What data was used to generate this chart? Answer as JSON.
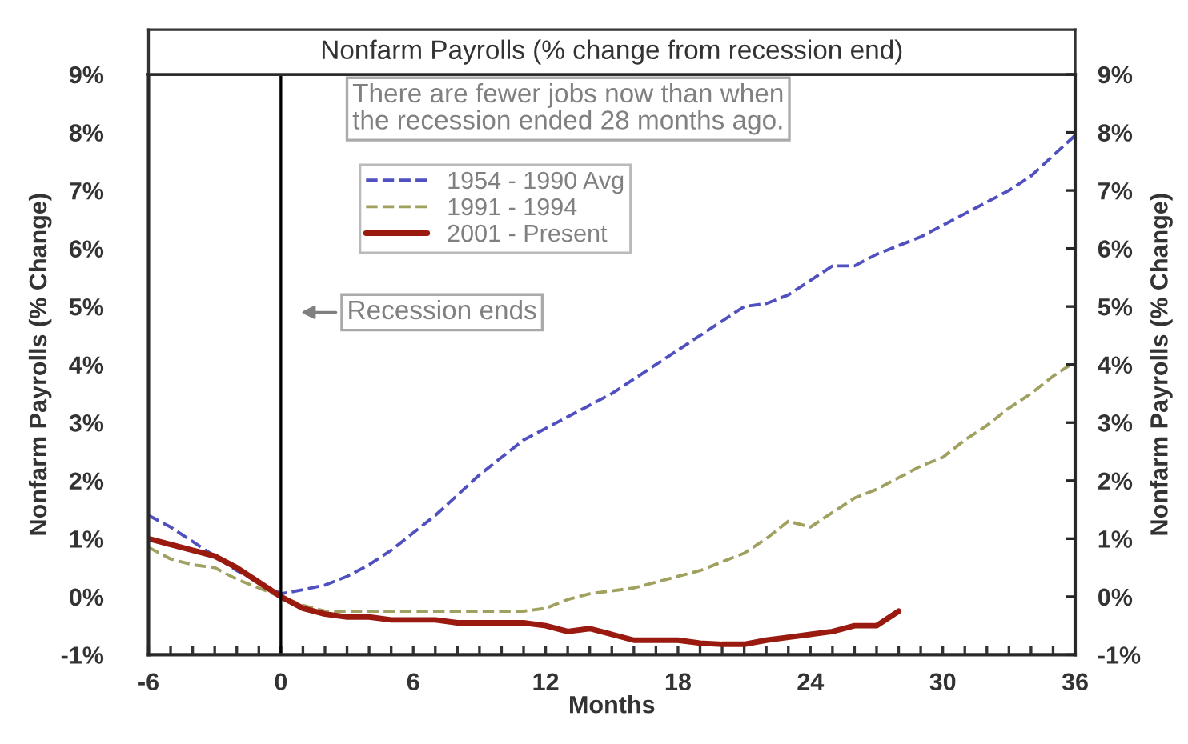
{
  "chart_data": {
    "type": "line",
    "title": "Nonfarm Payrolls (% change from recession end)",
    "xlabel": "Months",
    "ylabel": "Nonfarm Payrolls (% Change)",
    "y2label": "Nonfarm Payrolls (% Change)",
    "x": [
      -6,
      -5,
      -4,
      -3,
      -2,
      -1,
      0,
      1,
      2,
      3,
      4,
      5,
      6,
      7,
      8,
      9,
      10,
      11,
      12,
      13,
      14,
      15,
      16,
      17,
      18,
      19,
      20,
      21,
      22,
      23,
      24,
      25,
      26,
      27,
      28,
      29,
      30,
      31,
      32,
      33,
      34,
      35,
      36
    ],
    "series": [
      {
        "name": "1954 - 1990 Avg",
        "color": "#5050c0",
        "line_style": "dashed",
        "values": [
          1.4,
          1.2,
          0.95,
          0.7,
          0.45,
          0.25,
          0.05,
          0.12,
          0.2,
          0.35,
          0.55,
          0.8,
          1.1,
          1.4,
          1.75,
          2.1,
          2.4,
          2.7,
          2.9,
          3.1,
          3.3,
          3.5,
          3.75,
          4.0,
          4.25,
          4.5,
          4.75,
          5.0,
          5.05,
          5.2,
          5.45,
          5.7,
          5.7,
          5.9,
          6.05,
          6.2,
          6.4,
          6.6,
          6.8,
          7.0,
          7.25,
          7.6,
          7.95
        ]
      },
      {
        "name": "1991 - 1994",
        "color": "#a0a060",
        "line_style": "dashed",
        "values": [
          0.85,
          0.65,
          0.55,
          0.5,
          0.3,
          0.15,
          0.0,
          -0.15,
          -0.25,
          -0.25,
          -0.25,
          -0.25,
          -0.25,
          -0.25,
          -0.25,
          -0.25,
          -0.25,
          -0.25,
          -0.2,
          -0.05,
          0.05,
          0.1,
          0.15,
          0.25,
          0.35,
          0.45,
          0.6,
          0.75,
          1.0,
          1.3,
          1.2,
          1.45,
          1.7,
          1.85,
          2.05,
          2.25,
          2.4,
          2.7,
          2.95,
          3.25,
          3.5,
          3.8,
          4.05
        ]
      },
      {
        "name": "2001 - Present",
        "color": "#9a1a10",
        "line_style": "solid",
        "values": [
          1.0,
          0.9,
          0.8,
          0.7,
          0.5,
          0.25,
          0.0,
          -0.2,
          -0.3,
          -0.35,
          -0.35,
          -0.4,
          -0.4,
          -0.4,
          -0.45,
          -0.45,
          -0.45,
          -0.45,
          -0.5,
          -0.6,
          -0.55,
          -0.65,
          -0.75,
          -0.75,
          -0.75,
          -0.8,
          -0.82,
          -0.82,
          -0.75,
          -0.7,
          -0.65,
          -0.6,
          -0.5,
          -0.5,
          -0.25,
          null,
          null,
          null,
          null,
          null,
          null,
          null,
          null
        ]
      }
    ],
    "xlim": [
      -6,
      36
    ],
    "xticks": [
      {
        "value": -6,
        "label": "-6"
      },
      {
        "value": -5,
        "label": null
      },
      {
        "value": -4,
        "label": null
      },
      {
        "value": -3,
        "label": null
      },
      {
        "value": -2,
        "label": null
      },
      {
        "value": -1,
        "label": null
      },
      0,
      {
        "value": 1,
        "label": null
      },
      {
        "value": 2,
        "label": null
      },
      {
        "value": 3,
        "label": null
      },
      {
        "value": 4,
        "label": null
      },
      {
        "value": 5,
        "label": null
      },
      6,
      {
        "value": 7,
        "label": null
      },
      {
        "value": 8,
        "label": null
      },
      {
        "value": 9,
        "label": null
      },
      {
        "value": 10,
        "label": null
      },
      {
        "value": 11,
        "label": null
      },
      12,
      {
        "value": 13,
        "label": null
      },
      {
        "value": 14,
        "label": null
      },
      {
        "value": 15,
        "label": null
      },
      {
        "value": 16,
        "label": null
      },
      {
        "value": 17,
        "label": null
      },
      18,
      {
        "value": 19,
        "label": null
      },
      {
        "value": 20,
        "label": null
      },
      {
        "value": 21,
        "label": null
      },
      {
        "value": 22,
        "label": null
      },
      {
        "value": 23,
        "label": null
      },
      24,
      {
        "value": 25,
        "label": null
      },
      {
        "value": 26,
        "label": null
      },
      {
        "value": 27,
        "label": null
      },
      {
        "value": 28,
        "label": null
      },
      {
        "value": 29,
        "label": null
      },
      30,
      {
        "value": 31,
        "label": null
      },
      {
        "value": 32,
        "label": null
      },
      {
        "value": 33,
        "label": null
      },
      {
        "value": 34,
        "label": null
      },
      {
        "value": 35,
        "label": null
      },
      36
    ],
    "ylim": [
      -1,
      9
    ],
    "yticks": [
      {
        "value": -1,
        "label": "-1%"
      },
      {
        "value": 0,
        "label": "0%"
      },
      {
        "value": 1,
        "label": "1%"
      },
      {
        "value": 2,
        "label": "2%"
      },
      {
        "value": 3,
        "label": "3%"
      },
      {
        "value": 4,
        "label": "4%"
      },
      {
        "value": 5,
        "label": "5%"
      },
      {
        "value": 6,
        "label": "6%"
      },
      {
        "value": 7,
        "label": "7%"
      },
      {
        "value": 8,
        "label": "8%"
      },
      {
        "value": 9,
        "label": "9%"
      }
    ],
    "y2lim": [
      -1,
      9
    ],
    "y2ticks": [
      {
        "value": -1,
        "label": "-1%"
      },
      {
        "value": 0,
        "label": "0%"
      },
      {
        "value": 1,
        "label": "1%"
      },
      {
        "value": 2,
        "label": "2%"
      },
      {
        "value": 3,
        "label": "3%"
      },
      {
        "value": 4,
        "label": "4%"
      },
      {
        "value": 5,
        "label": "5%"
      },
      {
        "value": 6,
        "label": "6%"
      },
      {
        "value": 7,
        "label": "7%"
      },
      {
        "value": 8,
        "label": "8%"
      },
      {
        "value": 9,
        "label": "9%"
      }
    ],
    "ref_lines": [
      {
        "axis": "x",
        "value": 0,
        "label": "Recession ends",
        "color": "#000000"
      }
    ],
    "annotations": [
      "There are fewer jobs now than when\nthe recession ended 28 months ago."
    ],
    "legend": "top left",
    "grid": false
  }
}
